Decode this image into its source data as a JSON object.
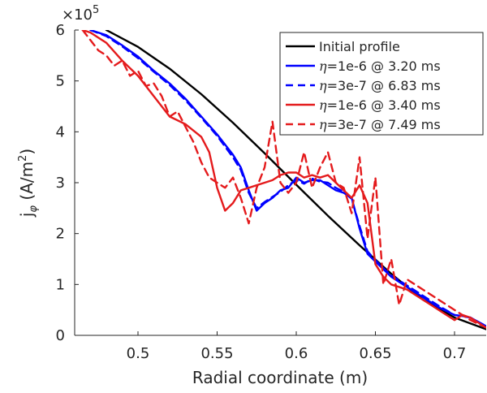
{
  "chart_data": {
    "type": "line",
    "xlabel": "Radial coordinate (m)",
    "ylabel": {
      "main": "j",
      "sub": "φ",
      "unit_open": " (A/m",
      "unit_sup": "2",
      "unit_close": ")"
    },
    "exponent": {
      "base": "×10",
      "power": "5"
    },
    "xlim": [
      0.46,
      0.72
    ],
    "ylim": [
      0,
      600000
    ],
    "xticks": [
      0.5,
      0.55,
      0.6,
      0.65,
      0.7
    ],
    "xtick_labels": [
      "0.5",
      "0.55",
      "0.6",
      "0.65",
      "0.7"
    ],
    "yticks": [
      0,
      100000,
      200000,
      300000,
      400000,
      500000,
      600000
    ],
    "ytick_labels": [
      "0",
      "1",
      "2",
      "3",
      "4",
      "5",
      "6"
    ],
    "grid": false,
    "legend_position": "top-right",
    "series": [
      {
        "name": "Initial profile",
        "eta": "",
        "eq": "",
        "value": "",
        "time": "",
        "color": "#000000",
        "dash": "solid",
        "x": [
          0.48,
          0.5,
          0.52,
          0.54,
          0.56,
          0.58,
          0.6,
          0.62,
          0.64,
          0.66,
          0.68,
          0.7,
          0.72
        ],
        "y": [
          600000,
          567000,
          524000,
          474000,
          418000,
          358000,
          296000,
          235000,
          177000,
          121000,
          70000,
          35000,
          12000
        ]
      },
      {
        "name": "",
        "eta": "η",
        "eq": "=",
        "value": "1e-6",
        "time": "@ 3.20 ms",
        "color": "#0000ff",
        "dash": "solid",
        "x": [
          0.47,
          0.48,
          0.49,
          0.5,
          0.51,
          0.52,
          0.53,
          0.54,
          0.55,
          0.56,
          0.565,
          0.57,
          0.575,
          0.58,
          0.585,
          0.59,
          0.595,
          0.6,
          0.605,
          0.61,
          0.615,
          0.62,
          0.625,
          0.63,
          0.635,
          0.64,
          0.645,
          0.65,
          0.655,
          0.66,
          0.665,
          0.67,
          0.68,
          0.69,
          0.7,
          0.705,
          0.71,
          0.72
        ],
        "y": [
          600000,
          590000,
          570000,
          548000,
          520000,
          495000,
          465000,
          430000,
          395000,
          355000,
          330000,
          285000,
          245000,
          260000,
          270000,
          285000,
          290000,
          310000,
          300000,
          305000,
          305000,
          295000,
          285000,
          280000,
          270000,
          210000,
          160000,
          145000,
          130000,
          115000,
          105000,
          95000,
          75000,
          55000,
          40000,
          38000,
          35000,
          18000
        ]
      },
      {
        "name": "",
        "eta": "η",
        "eq": "=",
        "value": "3e-7",
        "time": "@ 6.83 ms",
        "color": "#0000ff",
        "dash": "dashed",
        "x": [
          0.47,
          0.48,
          0.49,
          0.5,
          0.51,
          0.52,
          0.53,
          0.54,
          0.55,
          0.56,
          0.565,
          0.57,
          0.575,
          0.58,
          0.585,
          0.59,
          0.595,
          0.6,
          0.605,
          0.61,
          0.615,
          0.62,
          0.625,
          0.63,
          0.635,
          0.64,
          0.645,
          0.65,
          0.655,
          0.66,
          0.67,
          0.68,
          0.69,
          0.7,
          0.71,
          0.72
        ],
        "y": [
          600000,
          588000,
          568000,
          545000,
          518000,
          492000,
          462000,
          428000,
          392000,
          350000,
          325000,
          280000,
          250000,
          262000,
          272000,
          282000,
          295000,
          305000,
          298000,
          308000,
          302000,
          300000,
          290000,
          282000,
          268000,
          215000,
          165000,
          148000,
          132000,
          118000,
          98000,
          78000,
          58000,
          40000,
          35000,
          18000
        ]
      },
      {
        "name": "",
        "eta": "η",
        "eq": "=",
        "value": "1e-6",
        "time": "@ 3.40 ms",
        "color": "#e41a1c",
        "dash": "solid",
        "x": [
          0.465,
          0.47,
          0.48,
          0.49,
          0.5,
          0.51,
          0.52,
          0.53,
          0.54,
          0.545,
          0.55,
          0.555,
          0.56,
          0.565,
          0.57,
          0.575,
          0.58,
          0.585,
          0.59,
          0.595,
          0.6,
          0.605,
          0.61,
          0.615,
          0.62,
          0.625,
          0.63,
          0.635,
          0.64,
          0.645,
          0.65,
          0.655,
          0.66,
          0.67,
          0.68,
          0.69,
          0.7,
          0.705,
          0.71,
          0.72
        ],
        "y": [
          600000,
          595000,
          575000,
          540000,
          510000,
          470000,
          430000,
          415000,
          390000,
          360000,
          290000,
          245000,
          260000,
          285000,
          290000,
          295000,
          300000,
          305000,
          315000,
          320000,
          320000,
          310000,
          315000,
          310000,
          315000,
          300000,
          285000,
          270000,
          295000,
          260000,
          140000,
          115000,
          100000,
          90000,
          70000,
          50000,
          30000,
          40000,
          35000,
          15000
        ]
      },
      {
        "name": "",
        "eta": "η",
        "eq": "=",
        "value": "3e-7",
        "time": "@ 7.49 ms",
        "color": "#e41a1c",
        "dash": "dashed",
        "x": [
          0.465,
          0.47,
          0.475,
          0.48,
          0.485,
          0.49,
          0.495,
          0.5,
          0.505,
          0.51,
          0.515,
          0.52,
          0.525,
          0.53,
          0.535,
          0.54,
          0.545,
          0.55,
          0.555,
          0.56,
          0.565,
          0.57,
          0.575,
          0.58,
          0.585,
          0.59,
          0.595,
          0.6,
          0.605,
          0.61,
          0.615,
          0.62,
          0.625,
          0.63,
          0.635,
          0.64,
          0.645,
          0.65,
          0.655,
          0.66,
          0.665,
          0.67,
          0.68,
          0.69,
          0.7,
          0.71,
          0.72
        ],
        "y": [
          600000,
          580000,
          560000,
          550000,
          530000,
          540000,
          510000,
          520000,
          490000,
          495000,
          470000,
          430000,
          440000,
          410000,
          380000,
          340000,
          310000,
          300000,
          290000,
          310000,
          270000,
          220000,
          290000,
          330000,
          420000,
          300000,
          280000,
          300000,
          360000,
          290000,
          330000,
          360000,
          300000,
          290000,
          240000,
          350000,
          190000,
          310000,
          100000,
          150000,
          60000,
          110000,
          90000,
          70000,
          50000,
          30000,
          15000
        ]
      }
    ]
  }
}
